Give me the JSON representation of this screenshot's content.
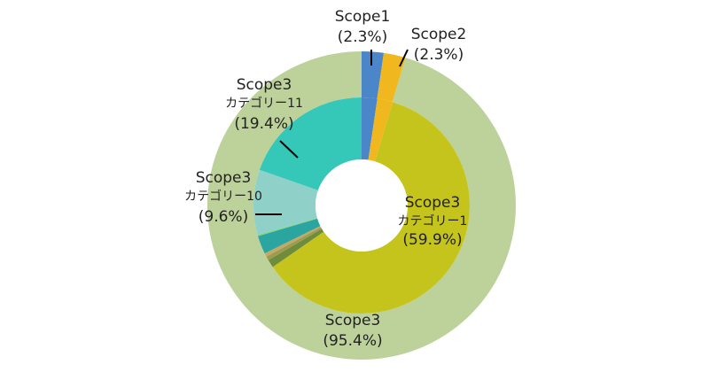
{
  "chart_data": {
    "type": "pie",
    "variant": "nested-donut",
    "title": "",
    "outer_ring": [
      {
        "name": "Scope1",
        "value": 2.3,
        "display": "(2.3%)",
        "color": "#4a86c8"
      },
      {
        "name": "Scope2",
        "value": 2.3,
        "display": "(2.3%)",
        "color": "#f0b81e"
      },
      {
        "name": "Scope3",
        "value": 95.4,
        "display": "(95.4%)",
        "color": "#bdd19a"
      }
    ],
    "inner_ring": [
      {
        "name": "Scope1",
        "value": 2.3,
        "color": "#4a86c8"
      },
      {
        "name": "Scope2",
        "value": 2.3,
        "color": "#f0b81e"
      },
      {
        "name": "Scope3 カテゴリー1",
        "value": 59.9,
        "display": "(59.9%)",
        "color": "#c5c41c"
      },
      {
        "name": "",
        "value": 1.2,
        "color": "#6e8c3c"
      },
      {
        "name": "",
        "value": 0.6,
        "color": "#9c9c50"
      },
      {
        "name": "",
        "value": 0.5,
        "color": "#c8a860"
      },
      {
        "name": "",
        "value": 2.7,
        "color": "#2aa5a0"
      },
      {
        "name": "",
        "value": 0.2,
        "color": "#7fd47f"
      },
      {
        "name": "Scope3 カテゴリー10",
        "value": 9.6,
        "display": "(9.6%)",
        "color": "#8fd0c8"
      },
      {
        "name": "Scope3 カテゴリー11",
        "value": 19.4,
        "display": "(19.4%)",
        "color": "#35c8b8"
      }
    ],
    "labels": {
      "scope1": {
        "title": "Scope1",
        "pct": "(2.3%)"
      },
      "scope2": {
        "title": "Scope2",
        "pct": "(2.3%)"
      },
      "scope3_total": {
        "title": "Scope3",
        "pct": "(95.4%)"
      },
      "cat1": {
        "title": "Scope3",
        "sub": "カテゴリー1",
        "pct": "(59.9%)"
      },
      "cat10": {
        "title": "Scope3",
        "sub": "カテゴリー10",
        "pct": "(9.6%)"
      },
      "cat11": {
        "title": "Scope3",
        "sub": "カテゴリー11",
        "pct": "(19.4%)"
      }
    }
  }
}
